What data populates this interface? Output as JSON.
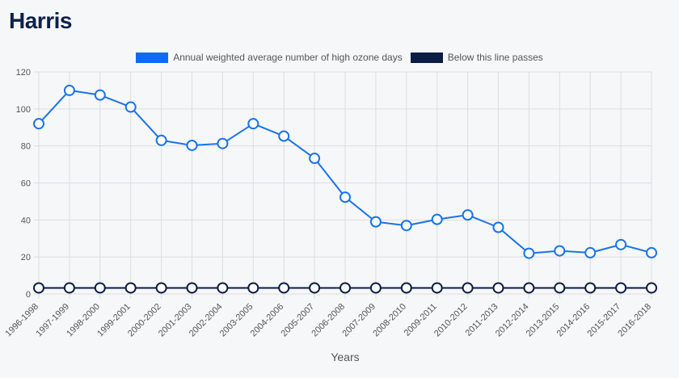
{
  "page": {
    "title": "Harris"
  },
  "colors": {
    "series_primary": "#1a73e8",
    "series_secondary": "#0b1d45",
    "legend_primary": "#0b6cf5",
    "grid": "#dddddd",
    "axis_text": "#555555"
  },
  "chart_data": {
    "type": "line",
    "title": "",
    "xlabel": "Years",
    "ylabel": "",
    "ylim": [
      0,
      120
    ],
    "yticks": [
      0,
      20,
      40,
      60,
      80,
      100,
      120
    ],
    "grid": true,
    "legend_position": "top-center",
    "categories": [
      "1996-1998",
      "1997-1999",
      "1998-2000",
      "1999-2001",
      "2000-2002",
      "2001-2003",
      "2002-2004",
      "2003-2005",
      "2004-2006",
      "2005-2007",
      "2006-2008",
      "2007-2009",
      "2008-2010",
      "2009-2011",
      "2010-2012",
      "2011-2013",
      "2012-2014",
      "2013-2015",
      "2014-2016",
      "2015-2017",
      "2016-2018"
    ],
    "series": [
      {
        "name": "Annual weighted average number of high ozone days",
        "values": [
          92,
          110,
          107.5,
          101,
          83,
          80.3,
          81.3,
          92,
          85.3,
          73.3,
          52.3,
          39,
          37,
          40.3,
          42.7,
          36,
          22,
          23.3,
          22.3,
          26.7,
          22.3
        ]
      },
      {
        "name": "Below this line passes",
        "values": [
          3.3,
          3.3,
          3.3,
          3.3,
          3.3,
          3.3,
          3.3,
          3.3,
          3.3,
          3.3,
          3.3,
          3.3,
          3.3,
          3.3,
          3.3,
          3.3,
          3.3,
          3.3,
          3.3,
          3.3,
          3.3
        ]
      }
    ]
  }
}
